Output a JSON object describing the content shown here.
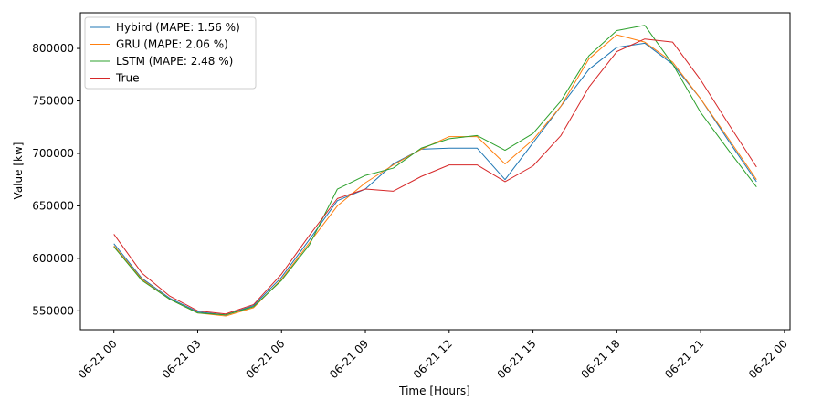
{
  "chart_data": {
    "type": "line",
    "xlabel": "Time [Hours]",
    "ylabel": "Value [kw]",
    "x": [
      "06-21 00",
      "06-21 01",
      "06-21 02",
      "06-21 03",
      "06-21 04",
      "06-21 05",
      "06-21 06",
      "06-21 07",
      "06-21 08",
      "06-21 09",
      "06-21 10",
      "06-21 11",
      "06-21 12",
      "06-21 13",
      "06-21 14",
      "06-21 15",
      "06-21 16",
      "06-21 17",
      "06-21 18",
      "06-21 19",
      "06-21 20",
      "06-21 21",
      "06-21 22",
      "06-21 23"
    ],
    "x_ticks": [
      "06-21 00",
      "06-21 03",
      "06-21 06",
      "06-21 09",
      "06-21 12",
      "06-21 15",
      "06-21 18",
      "06-21 21",
      "06-22 00"
    ],
    "x_tick_hours": [
      0,
      3,
      6,
      9,
      12,
      15,
      18,
      21,
      24
    ],
    "xlim_hours": [
      -1.2,
      24.2
    ],
    "y_ticks": [
      550000,
      600000,
      650000,
      700000,
      750000,
      800000
    ],
    "y_tick_labels": [
      "550000",
      "600000",
      "650000",
      "700000",
      "750000",
      "800000"
    ],
    "ylim": [
      532000,
      834000
    ],
    "grid": false,
    "legend_position": "top-left",
    "series": [
      {
        "name": "Hybird (MAPE: 1.56 %)",
        "color": "#1f77b4",
        "values": [
          614000,
          581000,
          562000,
          549000,
          546000,
          555000,
          582000,
          618000,
          655000,
          666000,
          690000,
          704000,
          705000,
          705000,
          675000,
          710000,
          745000,
          780000,
          801000,
          805000,
          785000,
          752000,
          712000,
          673000
        ]
      },
      {
        "name": "GRU (MAPE: 2.06 %)",
        "color": "#ff7f0e",
        "values": [
          612000,
          580000,
          561000,
          548000,
          545000,
          553000,
          580000,
          615000,
          650000,
          672000,
          689000,
          704000,
          716000,
          716000,
          690000,
          713000,
          745000,
          790000,
          813000,
          806000,
          787000,
          752000,
          714000,
          675000
        ]
      },
      {
        "name": "LSTM (MAPE: 2.48 %)",
        "color": "#2ca02c",
        "values": [
          611000,
          579000,
          561000,
          548000,
          546000,
          554000,
          579000,
          613000,
          666000,
          679000,
          686000,
          705000,
          714000,
          717000,
          703000,
          719000,
          750000,
          793000,
          817000,
          822000,
          785000,
          739000,
          703000,
          668000
        ]
      },
      {
        "name": "True",
        "color": "#d62728",
        "values": [
          623000,
          586000,
          564000,
          550000,
          547000,
          556000,
          585000,
          622000,
          657000,
          666000,
          664000,
          678000,
          689000,
          689000,
          673000,
          688000,
          717000,
          763000,
          797000,
          809000,
          806000,
          770000,
          728000,
          687000
        ]
      }
    ]
  }
}
